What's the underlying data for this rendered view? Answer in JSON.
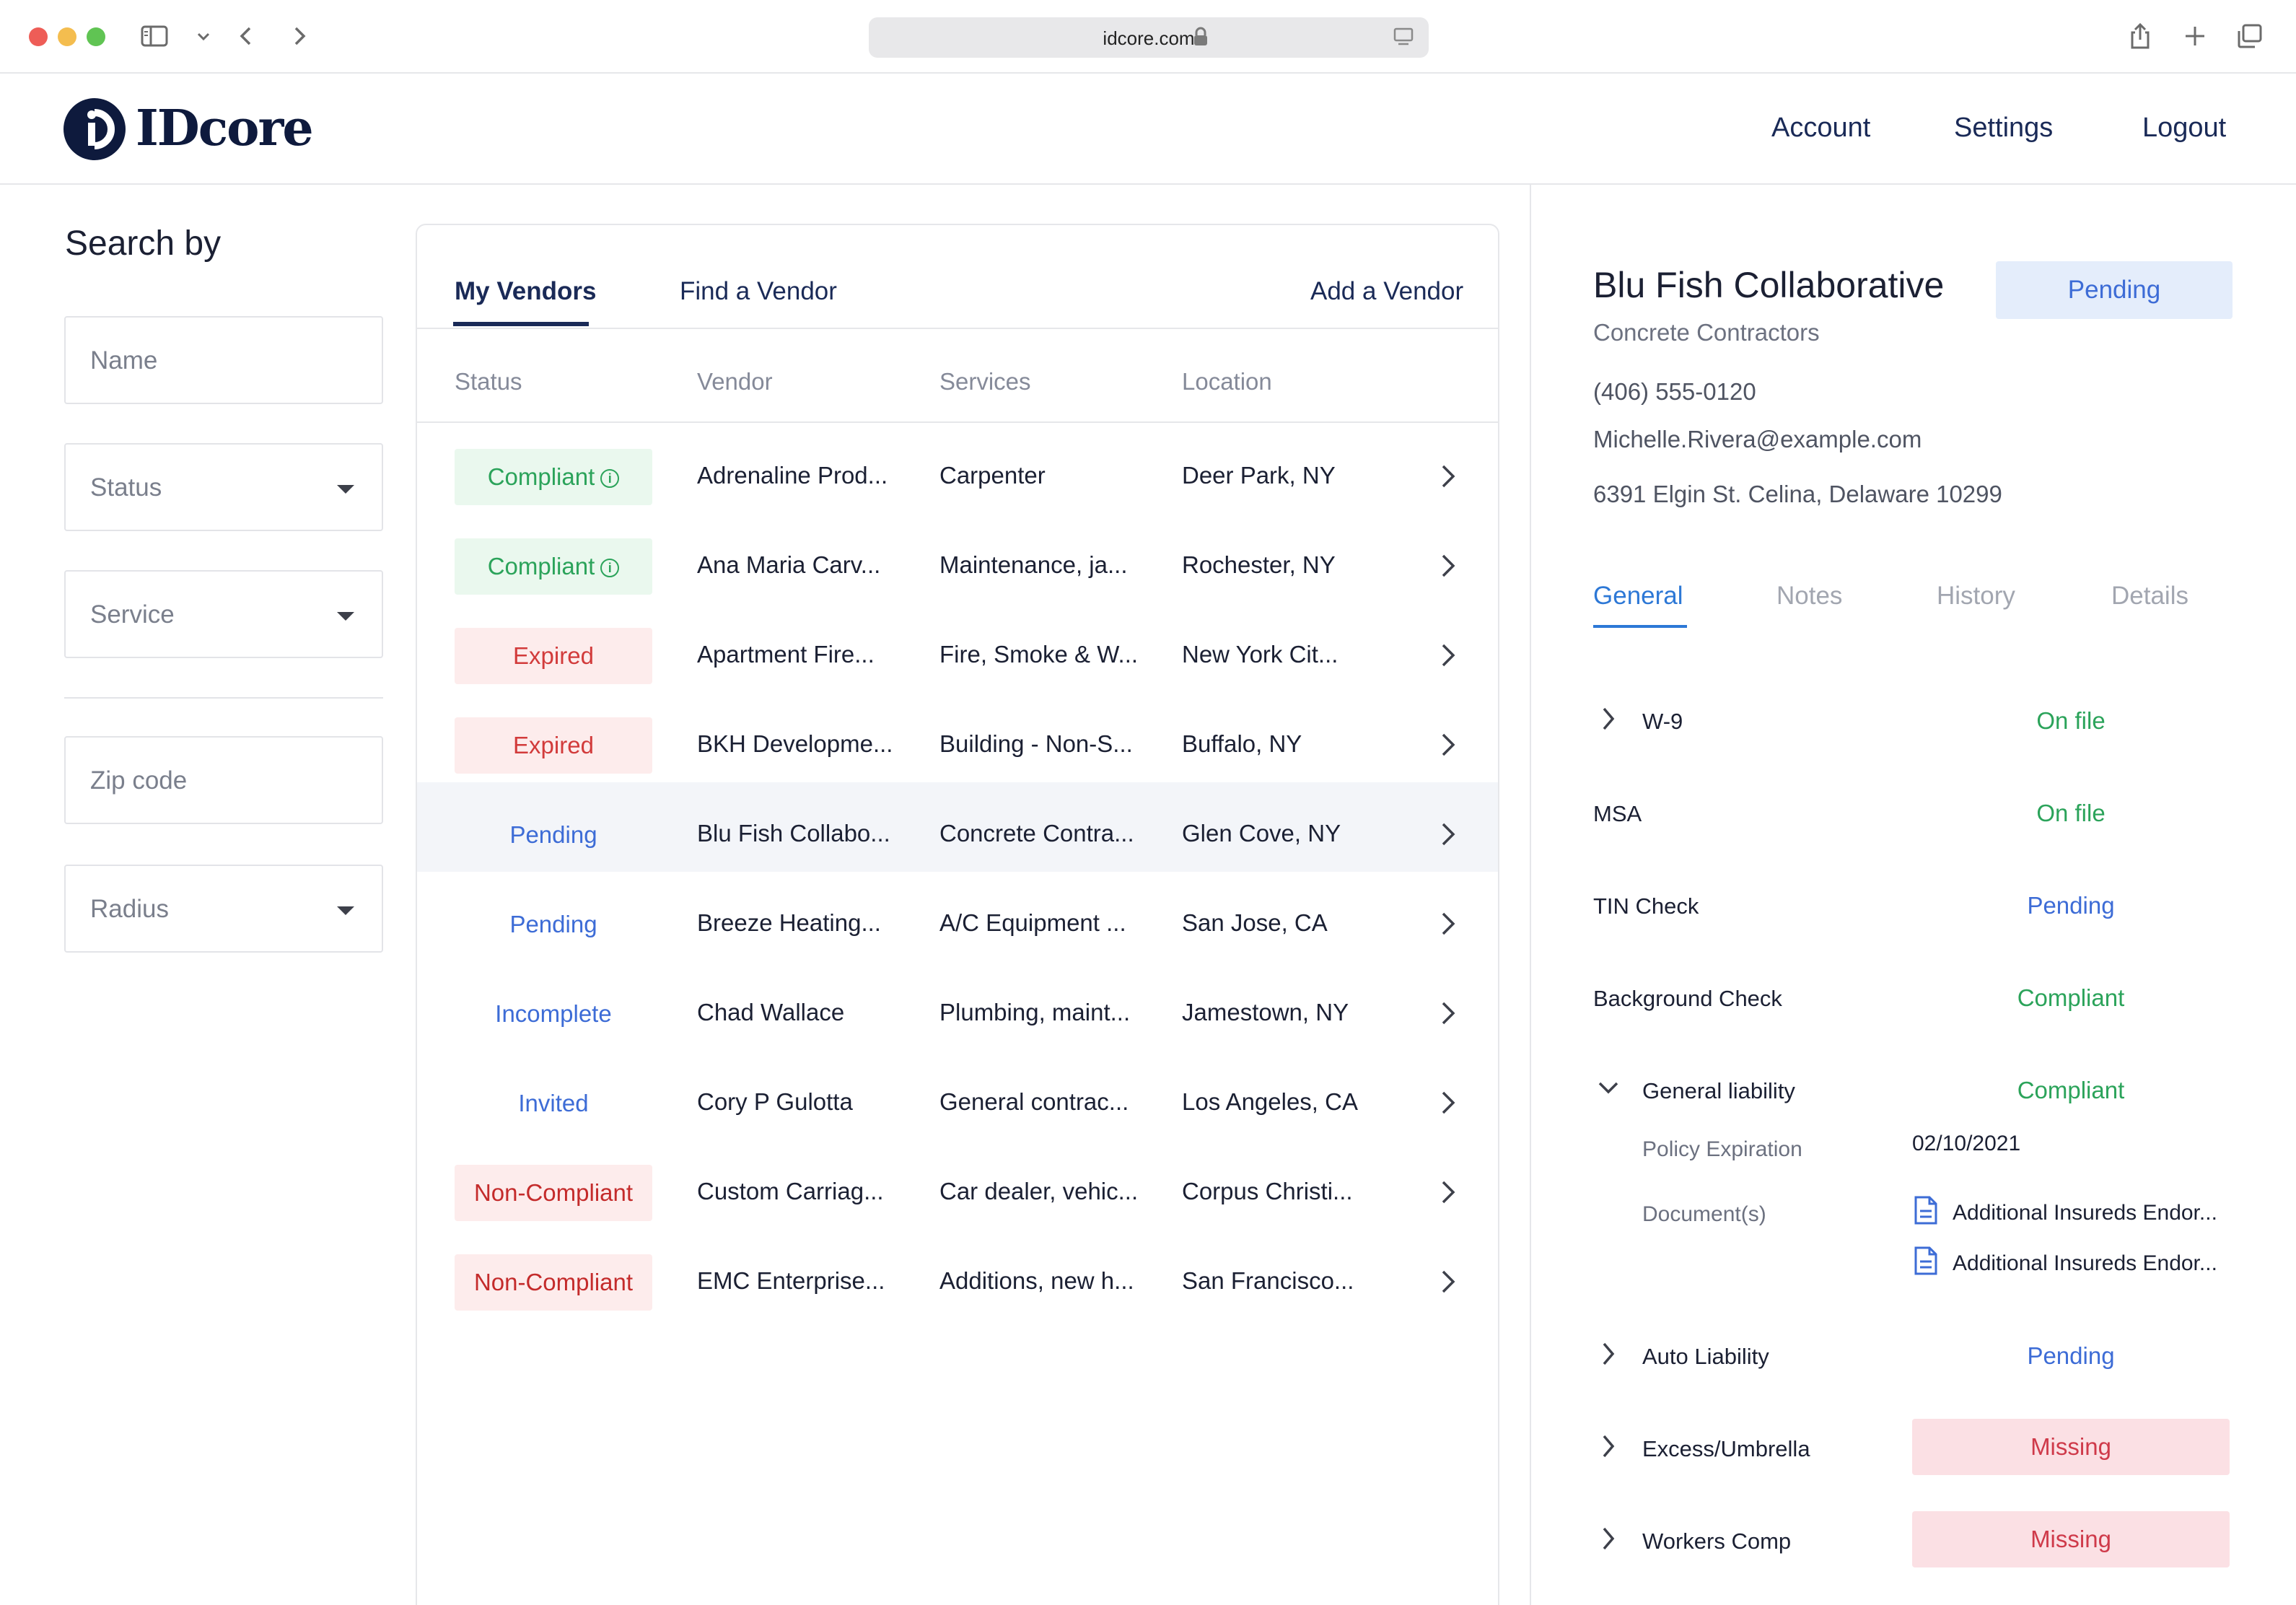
{
  "browser": {
    "url": "idcore.com"
  },
  "app": {
    "brand": "IDcore",
    "nav": [
      "Account",
      "Settings",
      "Logout"
    ]
  },
  "search": {
    "title": "Search by",
    "name_placeholder": "Name",
    "status_placeholder": "Status",
    "service_placeholder": "Service",
    "zip_placeholder": "Zip code",
    "radius_placeholder": "Radius"
  },
  "vendors": {
    "tabs": {
      "my": "My Vendors",
      "find": "Find a Vendor",
      "add": "Add a Vendor"
    },
    "columns": {
      "status": "Status",
      "vendor": "Vendor",
      "services": "Services",
      "location": "Location"
    },
    "rows": [
      {
        "status": "Compliant",
        "kind": "compliant",
        "vendor": "Adrenaline Prod...",
        "services": "Carpenter",
        "location": "Deer Park, NY"
      },
      {
        "status": "Compliant",
        "kind": "compliant",
        "vendor": "Ana Maria Carv...",
        "services": "Maintenance, ja...",
        "location": "Rochester, NY"
      },
      {
        "status": "Expired",
        "kind": "expired",
        "vendor": "Apartment Fire...",
        "services": "Fire, Smoke & W...",
        "location": "New York Cit..."
      },
      {
        "status": "Expired",
        "kind": "expired",
        "vendor": "BKH Developme...",
        "services": "Building - Non-S...",
        "location": "Buffalo, NY"
      },
      {
        "status": "Pending",
        "kind": "pending",
        "vendor": "Blu Fish Collabo...",
        "services": "Concrete Contra...",
        "location": "Glen Cove, NY",
        "selected": true
      },
      {
        "status": "Pending",
        "kind": "pending",
        "vendor": "Breeze Heating...",
        "services": "A/C Equipment ...",
        "location": "San Jose, CA"
      },
      {
        "status": "Incomplete",
        "kind": "incomplete",
        "vendor": "Chad Wallace",
        "services": "Plumbing, maint...",
        "location": "Jamestown, NY"
      },
      {
        "status": "Invited",
        "kind": "invited",
        "vendor": "Cory P Gulotta",
        "services": "General contrac...",
        "location": "Los Angeles, CA"
      },
      {
        "status": "Non-Compliant",
        "kind": "noncompliant",
        "vendor": "Custom Carriag...",
        "services": "Car dealer, vehic...",
        "location": "Corpus Christi..."
      },
      {
        "status": "Non-Compliant",
        "kind": "noncompliant",
        "vendor": "EMC Enterprise...",
        "services": "Additions, new h...",
        "location": "San Francisco..."
      }
    ]
  },
  "detail": {
    "name": "Blu Fish Collaborative",
    "status": "Pending",
    "category": "Concrete Contractors",
    "phone": "(406) 555-0120",
    "email": "Michelle.Rivera@example.com",
    "address": "6391 Elgin St. Celina, Delaware 10299",
    "tabs": [
      "General",
      "Notes",
      "History",
      "Details"
    ],
    "items": [
      {
        "label": "W-9",
        "status": "On file",
        "tone": "green",
        "chevron": "right"
      },
      {
        "label": "MSA",
        "status": "On file",
        "tone": "green",
        "chevron": "none"
      },
      {
        "label": "TIN Check",
        "status": "Pending",
        "tone": "blue",
        "chevron": "none"
      },
      {
        "label": "Background Check",
        "status": "Compliant",
        "tone": "green",
        "chevron": "none"
      },
      {
        "label": "General liability",
        "status": "Compliant",
        "tone": "green",
        "chevron": "down"
      },
      {
        "label": "Auto Liability",
        "status": "Pending",
        "tone": "blue",
        "chevron": "right"
      },
      {
        "label": "Excess/Umbrella",
        "status": "Missing",
        "tone": "missing",
        "chevron": "right"
      },
      {
        "label": "Workers Comp",
        "status": "Missing",
        "tone": "missing",
        "chevron": "right"
      }
    ],
    "general_liability": {
      "policy_label": "Policy Expiration",
      "policy_value": "02/10/2021",
      "documents_label": "Document(s)",
      "documents": [
        "Additional Insureds Endor...",
        "Additional Insureds Endor..."
      ]
    }
  }
}
